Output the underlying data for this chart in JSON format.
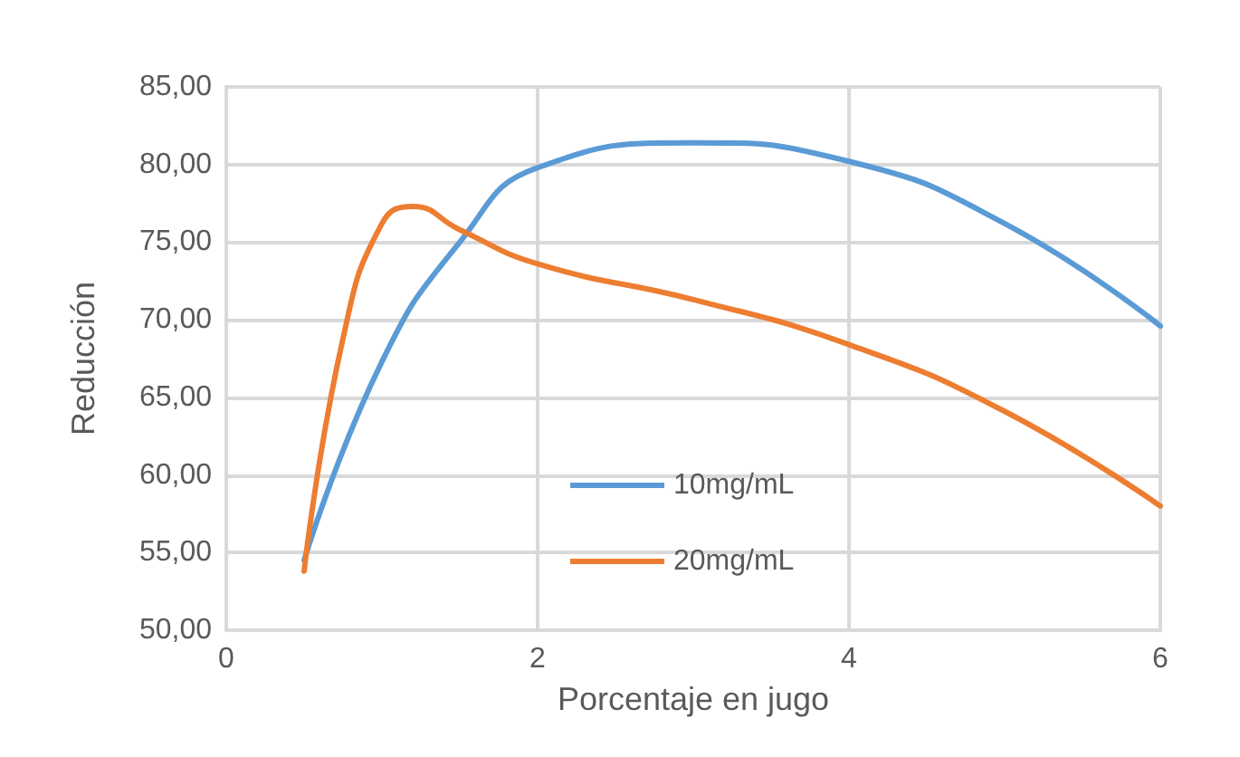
{
  "chart_data": {
    "type": "line",
    "xlabel": "Porcentaje en jugo",
    "ylabel": "Reducción",
    "xlim": [
      0,
      6
    ],
    "xticks": [
      0,
      2,
      4,
      6
    ],
    "ylim": [
      50,
      85
    ],
    "yticks": [
      {
        "value": 50,
        "label": "50,00"
      },
      {
        "value": 55,
        "label": "55,00"
      },
      {
        "value": 60,
        "label": "60,00"
      },
      {
        "value": 65,
        "label": "65,00"
      },
      {
        "value": 70,
        "label": "70,00"
      },
      {
        "value": 75,
        "label": "75,00"
      },
      {
        "value": 80,
        "label": "80,00"
      },
      {
        "value": 85,
        "label": "85,00"
      }
    ],
    "grid": true,
    "legend": "bottom",
    "marker": "none",
    "line_style": "solid",
    "series": [
      {
        "name": "10mg/mL",
        "color": "#5b9bd5",
        "x": [
          0.5,
          1,
          1.5,
          2,
          3,
          4,
          5,
          6
        ],
        "values": [
          54.5,
          67.3,
          75.0,
          79.8,
          81.4,
          80.2,
          76.2,
          69.6
        ]
      },
      {
        "name": "20mg/mL",
        "color": "#ed7d31",
        "x": [
          0.5,
          0.75,
          1,
          1.2,
          1.5,
          2,
          3,
          4,
          5,
          6
        ],
        "values": [
          53.8,
          68.8,
          76.2,
          77.3,
          75.8,
          73.6,
          71.3,
          68.4,
          64.1,
          58.0
        ]
      }
    ]
  }
}
